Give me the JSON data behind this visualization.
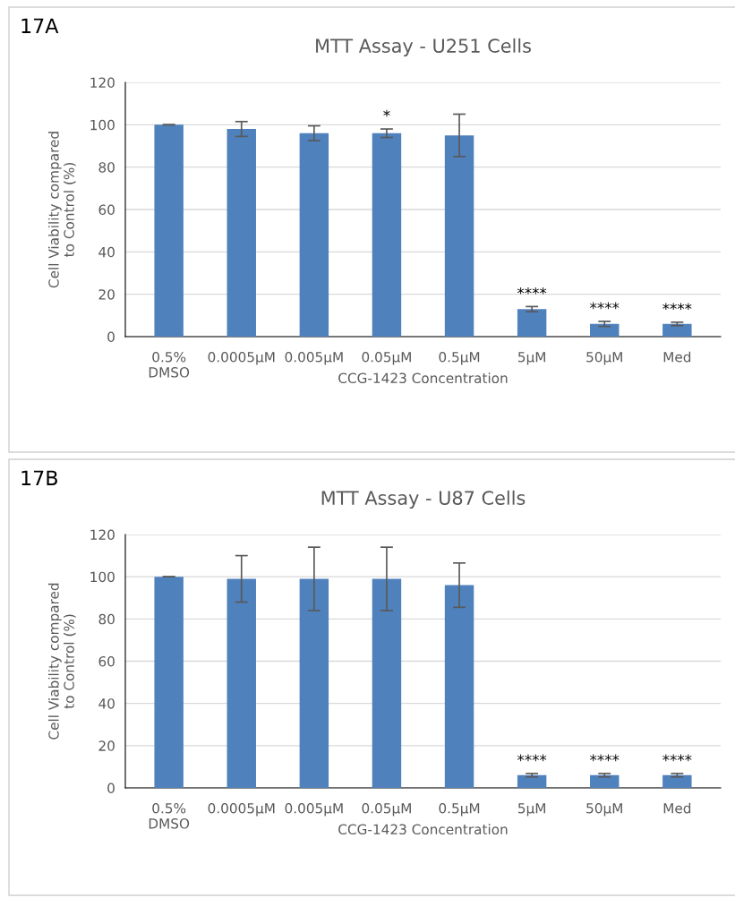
{
  "chart_data": [
    {
      "type": "bar",
      "title": "MTT Assay - U251 Cells",
      "xlabel": "CCG-1423 Concentration",
      "ylabel": "Cell Viability compared\nto Control (%)",
      "categories": [
        "0.5%\nDMSO",
        "0.0005µM",
        "0.005µM",
        "0.05µM",
        "0.5µM",
        "5µM",
        "50µM",
        "Med"
      ],
      "values": [
        100,
        98,
        96,
        96,
        95,
        13,
        6,
        6
      ],
      "errors": [
        0,
        3.5,
        3.5,
        2,
        10,
        1.2,
        1.2,
        0.8
      ],
      "color": "#4f81bd",
      "ylim": [
        0,
        120
      ],
      "yticks": [
        0,
        20,
        40,
        60,
        80,
        100,
        120
      ],
      "grid": "y",
      "annotations": [
        "17A",
        {
          "text": "*",
          "x": "0.05µM",
          "y": 96
        },
        {
          "text": "****",
          "x": "5µM",
          "y": 13
        },
        {
          "text": "****",
          "x": "50µM",
          "y": 6
        },
        {
          "text": "****",
          "x": "Med",
          "y": 6
        }
      ]
    },
    {
      "type": "bar",
      "title": "MTT Assay - U87 Cells",
      "xlabel": "CCG-1423 Concentration",
      "ylabel": "Cell Viability compared\nto Control (%)",
      "categories": [
        "0.5%\nDMSO",
        "0.0005µM",
        "0.005µM",
        "0.05µM",
        "0.5µM",
        "5µM",
        "50µM",
        "Med"
      ],
      "values": [
        100,
        99,
        99,
        99,
        96,
        6,
        6,
        6
      ],
      "errors": [
        0,
        11,
        15,
        15,
        10.5,
        0.8,
        0.8,
        0.8
      ],
      "color": "#4f81bd",
      "ylim": [
        0,
        120
      ],
      "yticks": [
        0,
        20,
        40,
        60,
        80,
        100,
        120
      ],
      "grid": "y",
      "annotations": [
        "17B",
        {
          "text": "****",
          "x": "5µM",
          "y": 6
        },
        {
          "text": "****",
          "x": "50µM",
          "y": 6
        },
        {
          "text": "****",
          "x": "Med",
          "y": 6
        }
      ]
    }
  ]
}
